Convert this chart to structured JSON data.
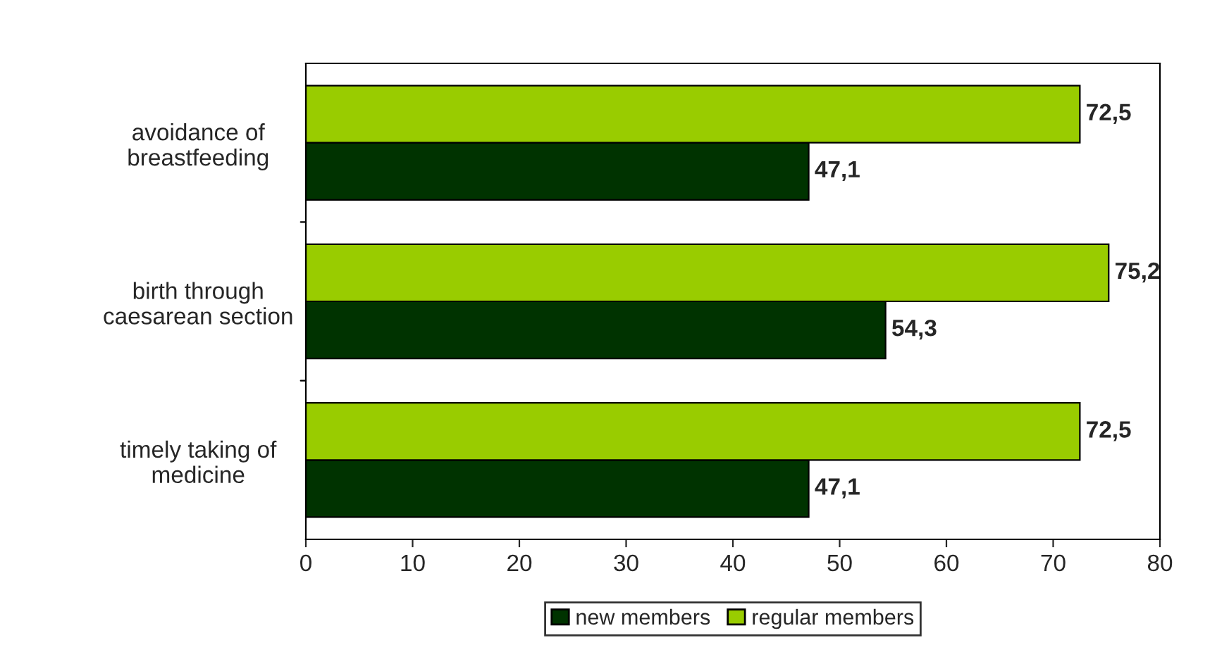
{
  "chart_data": {
    "type": "bar",
    "orientation": "horizontal",
    "categories": [
      "avoidance of\nbreastfeeding",
      "birth through\ncaesarean section",
      "timely taking of\nmedicine"
    ],
    "series": [
      {
        "name": "new members",
        "color": "#003300",
        "values": [
          47.1,
          54.3,
          47.1
        ],
        "value_labels": [
          "47,1",
          "54,3",
          "47,1"
        ]
      },
      {
        "name": "regular members",
        "color": "#99cc00",
        "values": [
          72.5,
          75.2,
          72.5
        ],
        "value_labels": [
          "72,5",
          "75,2",
          "72,5"
        ]
      }
    ],
    "xlim": [
      0,
      80
    ],
    "xticks": [
      0,
      10,
      20,
      30,
      40,
      50,
      60,
      70,
      80
    ],
    "grid": false,
    "legend": "bottom"
  }
}
